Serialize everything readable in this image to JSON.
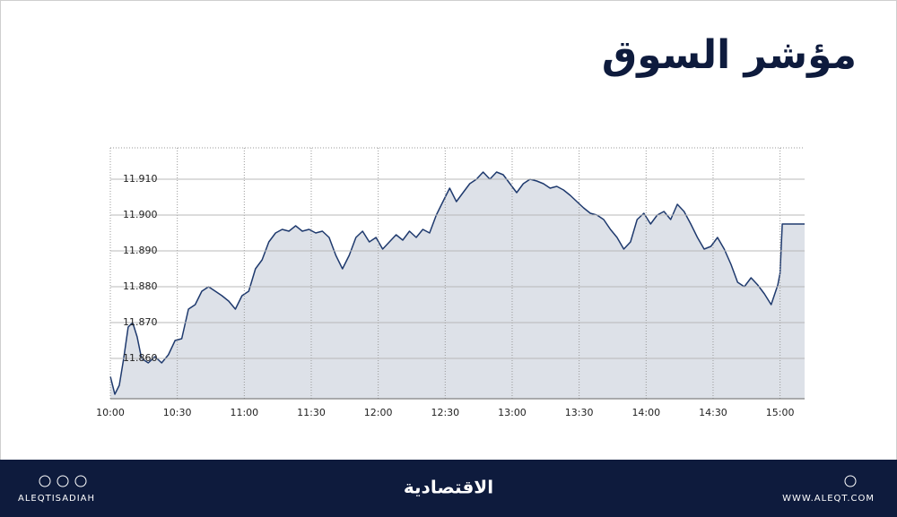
{
  "header": {
    "title": "مؤشر السوق"
  },
  "chart_data": {
    "type": "line",
    "color": "#1f3a6e",
    "area_color": "#dde1e8",
    "grid": true,
    "x": [
      "10:00",
      "10:02",
      "10:04",
      "10:06",
      "10:08",
      "10:10",
      "10:12",
      "10:14",
      "10:17",
      "10:20",
      "10:23",
      "10:26",
      "10:29",
      "10:32",
      "10:35",
      "10:38",
      "10:41",
      "10:44",
      "10:47",
      "10:50",
      "10:53",
      "10:56",
      "10:59",
      "11:02",
      "11:05",
      "11:08",
      "11:11",
      "11:14",
      "11:17",
      "11:20",
      "11:23",
      "11:26",
      "11:29",
      "11:32",
      "11:35",
      "11:38",
      "11:41",
      "11:44",
      "11:47",
      "11:50",
      "11:53",
      "11:56",
      "11:59",
      "12:02",
      "12:05",
      "12:08",
      "12:11",
      "12:14",
      "12:17",
      "12:20",
      "12:23",
      "12:26",
      "12:29",
      "12:32",
      "12:35",
      "12:38",
      "12:41",
      "12:44",
      "12:47",
      "12:50",
      "12:53",
      "12:56",
      "12:59",
      "13:02",
      "13:05",
      "13:08",
      "13:11",
      "13:14",
      "13:17",
      "13:20",
      "13:23",
      "13:26",
      "13:29",
      "13:32",
      "13:35",
      "13:38",
      "13:41",
      "13:44",
      "13:47",
      "13:50",
      "13:53",
      "13:56",
      "13:59",
      "14:02",
      "14:05",
      "14:08",
      "14:11",
      "14:14",
      "14:17",
      "14:20",
      "14:23",
      "14:26",
      "14:29",
      "14:32",
      "14:35",
      "14:38",
      "14:41",
      "14:44",
      "14:47",
      "14:50",
      "14:53",
      "14:56",
      "14:59",
      "15:00",
      "15:01",
      "15:11"
    ],
    "values": [
      11855,
      11850,
      11852.5,
      11860,
      11868.75,
      11870,
      11866,
      11860,
      11858.75,
      11860.5,
      11858.75,
      11861,
      11865,
      11865.5,
      11873.75,
      11875,
      11878.75,
      11880,
      11878.75,
      11877.5,
      11876,
      11873.75,
      11877.5,
      11878.75,
      11885,
      11887.5,
      11892.5,
      11895,
      11896,
      11895.5,
      11897,
      11895.5,
      11896,
      11895,
      11895.5,
      11893.75,
      11888.75,
      11885,
      11888.75,
      11893.75,
      11895.5,
      11892.5,
      11893.75,
      11890.5,
      11892.5,
      11894.5,
      11893,
      11895.5,
      11893.75,
      11896,
      11895,
      11900,
      11903.75,
      11907.5,
      11903.75,
      11906.25,
      11908.75,
      11910,
      11912,
      11910,
      11912,
      11911.25,
      11908.75,
      11906.25,
      11908.75,
      11910,
      11909.5,
      11908.75,
      11907.5,
      11908,
      11907,
      11905.5,
      11903.75,
      11902,
      11900.5,
      11900,
      11898.75,
      11896,
      11893.75,
      11890.5,
      11892.5,
      11898.75,
      11900.5,
      11897.5,
      11900,
      11901,
      11898.75,
      11903,
      11901,
      11897.5,
      11893.75,
      11890.5,
      11891.25,
      11893.75,
      11890.5,
      11886.25,
      11881.25,
      11880,
      11882.5,
      11880.5,
      11878,
      11875,
      11880.5,
      11883.75,
      11897.5,
      11897.5
    ],
    "xlim": [
      "10:00",
      "15:11"
    ],
    "xticks": [
      "10:00",
      "10:30",
      "11:00",
      "11:30",
      "12:00",
      "12:30",
      "13:00",
      "13:30",
      "14:00",
      "14:30",
      "15:00"
    ],
    "ylim": [
      11848.75,
      11918.75
    ],
    "yticks": [
      {
        "value": 11860,
        "label": "11.860"
      },
      {
        "value": 11870,
        "label": "11.870"
      },
      {
        "value": 11880,
        "label": "11.880"
      },
      {
        "value": 11890,
        "label": "11.890"
      },
      {
        "value": 11900,
        "label": "11.900"
      },
      {
        "value": 11910,
        "label": "11.910"
      }
    ]
  },
  "footer": {
    "left": "ALEQTISADIAH",
    "center": "الاقتصادية",
    "right": "WWW.ALEQT.COM"
  }
}
